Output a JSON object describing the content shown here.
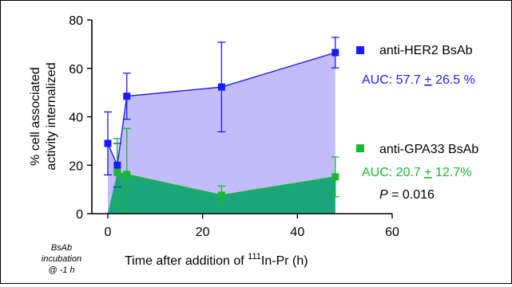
{
  "chart_data": {
    "type": "area",
    "xlabel_prefix": "Time after addition of ",
    "xlabel_superscript": "111",
    "xlabel_suffix": "In-Pr (h)",
    "ylabel_line1": "% cell associated",
    "ylabel_line2": "activity internalized",
    "xlim": [
      0,
      60
    ],
    "ylim": [
      0,
      80
    ],
    "xticks": [
      0,
      20,
      40,
      60
    ],
    "yticks": [
      0,
      20,
      40,
      60,
      80
    ],
    "x_annotation": [
      "BsAb",
      "incubation",
      "@ -1 h"
    ],
    "grid": false,
    "legend_position": "right",
    "series": [
      {
        "name": "anti-HER2 BsAb",
        "color": "#1a1aff",
        "fill": "#c2bdfa",
        "marker": "square",
        "x": [
          0,
          2,
          4,
          24,
          48
        ],
        "y": [
          29,
          20,
          48.5,
          52.3,
          66.5
        ],
        "err": [
          13,
          9,
          9.5,
          18.5,
          6.3
        ],
        "auc_text": "AUC: 57.7 ",
        "auc_pm": "+",
        "auc_rest": " 26.5 %"
      },
      {
        "name": "anti-GPA33 BsAb",
        "color": "#16b82e",
        "fill": "#1aa67a",
        "marker": "square",
        "x": [
          2,
          4,
          24,
          48
        ],
        "y": [
          17,
          16.2,
          7.6,
          15.2
        ],
        "err": [
          14,
          19,
          3.8,
          8.2
        ],
        "auc_text": "AUC: 20.7 ",
        "auc_pm": "+",
        "auc_rest": " 12.7%"
      }
    ],
    "p_label": "P",
    "p_value": " = 0.016"
  }
}
